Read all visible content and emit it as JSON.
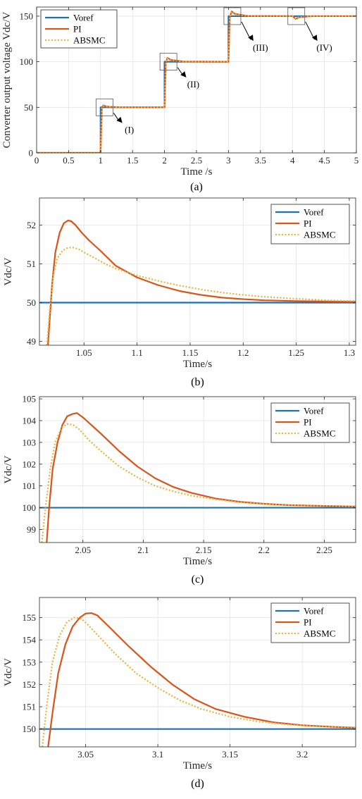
{
  "colors": {
    "voref": "#1f6fb5",
    "pi": "#d9541a",
    "absmc": "#eeb13a"
  },
  "chart_data": [
    {
      "type": "line",
      "caption": "(a)",
      "xlabel": "Time /s",
      "ylabel": "Converter output voltage Vdc/V",
      "xlim": [
        0,
        5
      ],
      "ylim": [
        0,
        160
      ],
      "xticks": [
        0,
        0.5,
        1,
        1.5,
        2,
        2.5,
        3,
        3.5,
        4,
        4.5,
        5
      ],
      "xtick_labels": [
        "0",
        "0.5",
        "1",
        "1.5",
        "2",
        "2.5",
        "3",
        "3.5",
        "4",
        "4.5",
        "5"
      ],
      "yticks": [
        0,
        50,
        100,
        150
      ],
      "ytick_labels": [
        "0",
        "50",
        "100",
        "150"
      ],
      "grid": true,
      "legend": "top-left",
      "annotations": [
        {
          "label": "(I)",
          "x": 1.05,
          "y": 50,
          "tx": 1.45,
          "ty": 22
        },
        {
          "label": "(II)",
          "x": 2.05,
          "y": 100,
          "tx": 2.45,
          "ty": 72
        },
        {
          "label": "(III)",
          "x": 3.05,
          "y": 150,
          "tx": 3.5,
          "ty": 112
        },
        {
          "label": "(IV)",
          "x": 4.05,
          "y": 150,
          "tx": 4.5,
          "ty": 112
        }
      ],
      "series": [
        {
          "name": "Voref",
          "style": "solid",
          "color": "#1f6fb5",
          "x": [
            0,
            1,
            1,
            2,
            2,
            3,
            3,
            4,
            4,
            5
          ],
          "y": [
            0,
            0,
            50,
            50,
            100,
            100,
            150,
            150,
            150,
            150
          ]
        },
        {
          "name": "PI",
          "style": "solid",
          "color": "#d9541a",
          "x": [
            0,
            1,
            1.02,
            1.04,
            1.1,
            1.3,
            2,
            2.02,
            2.045,
            2.1,
            2.3,
            3,
            3.02,
            3.05,
            3.1,
            3.3,
            4,
            4.02,
            4.05,
            4.1,
            4.3,
            5
          ],
          "y": [
            0,
            0,
            49,
            52.1,
            50.7,
            50,
            50,
            99,
            104.3,
            102,
            100.2,
            100,
            149,
            155.2,
            152.5,
            150.3,
            150,
            149,
            147,
            148.8,
            150,
            150
          ]
        },
        {
          "name": "ABSMC",
          "style": "dotted",
          "color": "#eeb13a",
          "x": [
            0,
            1,
            1.02,
            1.04,
            1.1,
            1.3,
            2,
            2.02,
            2.04,
            2.1,
            2.3,
            3,
            3.02,
            3.045,
            3.1,
            3.3,
            4,
            4.02,
            4.05,
            4.1,
            4.3,
            5
          ],
          "y": [
            0,
            0,
            49,
            51.4,
            50.8,
            50.1,
            50,
            99,
            103.9,
            101.5,
            100.2,
            100,
            149,
            155,
            151.8,
            150.2,
            150,
            149,
            147.5,
            149,
            150,
            150
          ]
        }
      ]
    },
    {
      "type": "line",
      "caption": "(b)",
      "xlabel": "Time/s",
      "ylabel": "Vdc/V",
      "xlim": [
        1.008,
        1.306
      ],
      "ylim": [
        48.9,
        52.7
      ],
      "xticks": [
        1.05,
        1.1,
        1.15,
        1.2,
        1.25,
        1.3
      ],
      "xtick_labels": [
        "1.05",
        "1.1",
        "1.15",
        "1.2",
        "1.25",
        "1.3"
      ],
      "yticks": [
        49,
        50,
        51,
        52
      ],
      "ytick_labels": [
        "49",
        "50",
        "51",
        "52"
      ],
      "grid": true,
      "legend": "top-right",
      "series": [
        {
          "name": "Voref",
          "style": "solid",
          "color": "#1f6fb5",
          "x": [
            1.008,
            1.306
          ],
          "y": [
            50,
            50
          ]
        },
        {
          "name": "PI",
          "style": "solid",
          "color": "#d9541a",
          "x": [
            1.016,
            1.018,
            1.02,
            1.023,
            1.027,
            1.031,
            1.035,
            1.038,
            1.042,
            1.048,
            1.055,
            1.065,
            1.08,
            1.1,
            1.12,
            1.14,
            1.16,
            1.18,
            1.2,
            1.22,
            1.25,
            1.28,
            1.306
          ],
          "y": [
            48.9,
            49.7,
            50.5,
            51.3,
            51.8,
            52.05,
            52.12,
            52.1,
            52.0,
            51.8,
            51.6,
            51.35,
            50.95,
            50.65,
            50.45,
            50.3,
            50.2,
            50.13,
            50.09,
            50.06,
            50.04,
            50.03,
            50.02
          ]
        },
        {
          "name": "ABSMC",
          "style": "dotted",
          "color": "#eeb13a",
          "x": [
            1.015,
            1.018,
            1.021,
            1.025,
            1.03,
            1.035,
            1.04,
            1.045,
            1.05,
            1.06,
            1.07,
            1.08,
            1.1,
            1.12,
            1.14,
            1.16,
            1.18,
            1.2,
            1.22,
            1.25,
            1.28,
            1.306
          ],
          "y": [
            48.9,
            49.9,
            50.7,
            51.15,
            51.35,
            51.42,
            51.42,
            51.38,
            51.3,
            51.15,
            51.0,
            50.88,
            50.7,
            50.56,
            50.44,
            50.34,
            50.26,
            50.2,
            50.15,
            50.1,
            50.06,
            50.04
          ]
        }
      ]
    },
    {
      "type": "line",
      "caption": "(c)",
      "xlabel": "Time/s",
      "ylabel": "Vdc/V",
      "xlim": [
        2.014,
        2.276
      ],
      "ylim": [
        98.4,
        105.1
      ],
      "xticks": [
        2.05,
        2.1,
        2.15,
        2.2,
        2.25
      ],
      "xtick_labels": [
        "2.05",
        "2.1",
        "2.15",
        "2.2",
        "2.25"
      ],
      "yticks": [
        99,
        100,
        101,
        102,
        103,
        104,
        105
      ],
      "ytick_labels": [
        "99",
        "100",
        "101",
        "102",
        "103",
        "104",
        "105"
      ],
      "grid": true,
      "legend": "top-right",
      "series": [
        {
          "name": "Voref",
          "style": "solid",
          "color": "#1f6fb5",
          "x": [
            2.014,
            2.276
          ],
          "y": [
            100,
            100
          ]
        },
        {
          "name": "PI",
          "style": "solid",
          "color": "#d9541a",
          "x": [
            2.02,
            2.022,
            2.025,
            2.029,
            2.033,
            2.037,
            2.041,
            2.045,
            2.05,
            2.055,
            2.065,
            2.08,
            2.095,
            2.11,
            2.125,
            2.14,
            2.16,
            2.18,
            2.2,
            2.22,
            2.25,
            2.276
          ],
          "y": [
            98.4,
            100.0,
            101.8,
            103.0,
            103.8,
            104.2,
            104.3,
            104.35,
            104.15,
            103.9,
            103.4,
            102.6,
            101.9,
            101.35,
            100.95,
            100.68,
            100.42,
            100.27,
            100.18,
            100.12,
            100.08,
            100.05
          ]
        },
        {
          "name": "ABSMC",
          "style": "dotted",
          "color": "#eeb13a",
          "x": [
            2.016,
            2.019,
            2.023,
            2.027,
            2.032,
            2.037,
            2.042,
            2.047,
            2.055,
            2.065,
            2.08,
            2.095,
            2.11,
            2.125,
            2.14,
            2.16,
            2.18,
            2.2,
            2.22,
            2.25,
            2.276
          ],
          "y": [
            98.4,
            100.0,
            101.8,
            103.0,
            103.65,
            103.85,
            103.8,
            103.6,
            103.1,
            102.6,
            101.9,
            101.4,
            101.0,
            100.75,
            100.55,
            100.38,
            100.25,
            100.17,
            100.12,
            100.08,
            100.06
          ]
        }
      ]
    },
    {
      "type": "line",
      "caption": "(d)",
      "xlabel": "Time/s",
      "ylabel": "Vdc/V",
      "xlim": [
        3.018,
        3.237
      ],
      "ylim": [
        149.2,
        155.9
      ],
      "xticks": [
        3.05,
        3.1,
        3.15,
        3.2
      ],
      "xtick_labels": [
        "3.05",
        "3.1",
        "3.15",
        "3.2"
      ],
      "yticks": [
        150,
        151,
        152,
        153,
        154,
        155
      ],
      "ytick_labels": [
        "150",
        "151",
        "152",
        "153",
        "154",
        "155"
      ],
      "grid": true,
      "legend": "top-right",
      "series": [
        {
          "name": "Voref",
          "style": "solid",
          "color": "#1f6fb5",
          "x": [
            3.018,
            3.237
          ],
          "y": [
            150,
            150
          ]
        },
        {
          "name": "PI",
          "style": "solid",
          "color": "#d9541a",
          "x": [
            3.024,
            3.027,
            3.031,
            3.036,
            3.041,
            3.046,
            3.05,
            3.054,
            3.058,
            3.066,
            3.08,
            3.095,
            3.11,
            3.125,
            3.14,
            3.16,
            3.18,
            3.2,
            3.22,
            3.237
          ],
          "y": [
            149.2,
            150.7,
            152.5,
            153.8,
            154.6,
            155.0,
            155.18,
            155.2,
            155.1,
            154.6,
            153.7,
            152.8,
            152.0,
            151.35,
            150.9,
            150.55,
            150.3,
            150.17,
            150.1,
            150.06
          ]
        },
        {
          "name": "ABSMC",
          "style": "dotted",
          "color": "#eeb13a",
          "x": [
            3.02,
            3.023,
            3.027,
            3.032,
            3.037,
            3.042,
            3.047,
            3.052,
            3.06,
            3.07,
            3.085,
            3.1,
            3.115,
            3.13,
            3.15,
            3.17,
            3.19,
            3.21,
            3.237
          ],
          "y": [
            149.2,
            151.0,
            153.0,
            154.2,
            154.8,
            155.0,
            154.95,
            154.65,
            154.1,
            153.4,
            152.5,
            151.85,
            151.3,
            150.9,
            150.55,
            150.33,
            150.2,
            150.12,
            150.07
          ]
        }
      ]
    }
  ]
}
